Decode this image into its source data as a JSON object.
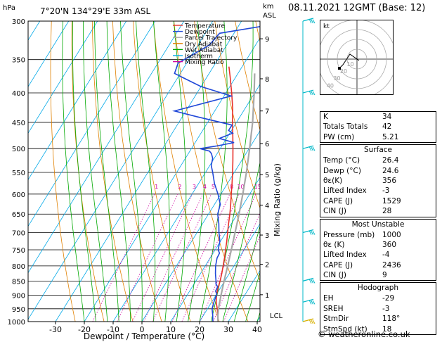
{
  "header": {
    "location": "7°20'N 134°29'E 33m ASL",
    "date": "08.11.2021 12GMT (Base: 12)",
    "pressure_unit": "hPa",
    "height_unit_top": "km",
    "height_unit_bottom": "ASL"
  },
  "chart_data": {
    "type": "line",
    "title": "7°20'N 134°29'E 33m ASL",
    "xlabel": "Dewpoint / Temperature (°C)",
    "ylabel_left": "hPa",
    "ylabel_right": "Mixing Ratio (g/kg)",
    "x_ticks": [
      -30,
      -20,
      -10,
      0,
      10,
      20,
      30,
      40
    ],
    "xlim": [
      -35,
      40
    ],
    "pressure_levels": [
      300,
      350,
      400,
      450,
      500,
      550,
      600,
      650,
      700,
      750,
      800,
      850,
      900,
      950,
      1000
    ],
    "ylim": [
      1000,
      300
    ],
    "y_scale": "log",
    "km_ticks": [
      {
        "km": "1",
        "p": 898
      },
      {
        "km": "2",
        "p": 795
      },
      {
        "km": "3",
        "p": 707
      },
      {
        "km": "4",
        "p": 627
      },
      {
        "km": "5",
        "p": 555
      },
      {
        "km": "6",
        "p": 490
      },
      {
        "km": "7",
        "p": 430
      },
      {
        "km": "8",
        "p": 378
      },
      {
        "km": "9",
        "p": 322
      }
    ],
    "lcl_label": "LCL",
    "lcl_pressure": 975,
    "mixing_ratio_labels": [
      "1",
      "2",
      "3",
      "4",
      "5",
      "8",
      "10",
      "15",
      "20",
      "25"
    ],
    "mixing_ratio_label_pressure": 590,
    "legend": [
      {
        "name": "Temperature",
        "color": "#e8302a"
      },
      {
        "name": "Dewpoint",
        "color": "#2048d8"
      },
      {
        "name": "Parcel Trajectory",
        "color": "#a8a8a8"
      },
      {
        "name": "Dry Adiabat",
        "color": "#e08000"
      },
      {
        "name": "Wet Adiabat",
        "color": "#00a800"
      },
      {
        "name": "Isotherm",
        "color": "#00a8e8"
      },
      {
        "name": "Mixing Ratio",
        "color": "#d000a0"
      }
    ],
    "series": [
      {
        "name": "Temperature",
        "color": "#e8302a",
        "points": [
          [
            1000,
            26.4
          ],
          [
            975,
            25.0
          ],
          [
            950,
            23.4
          ],
          [
            925,
            21.6
          ],
          [
            900,
            20.2
          ],
          [
            875,
            19.2
          ],
          [
            850,
            18.4
          ],
          [
            825,
            17.4
          ],
          [
            800,
            16.2
          ],
          [
            775,
            15.0
          ],
          [
            750,
            13.6
          ],
          [
            725,
            12.2
          ],
          [
            700,
            10.6
          ],
          [
            675,
            9.0
          ],
          [
            650,
            7.4
          ],
          [
            625,
            5.6
          ],
          [
            600,
            3.6
          ],
          [
            575,
            1.6
          ],
          [
            550,
            -0.6
          ],
          [
            525,
            -3.0
          ],
          [
            500,
            -5.6
          ],
          [
            475,
            -8.4
          ],
          [
            450,
            -11.4
          ],
          [
            425,
            -14.4
          ],
          [
            400,
            -18.0
          ],
          [
            375,
            -22.0
          ],
          [
            360,
            -24.6
          ]
        ]
      },
      {
        "name": "Dewpoint",
        "color": "#2048d8",
        "points": [
          [
            1000,
            24.6
          ],
          [
            975,
            23.2
          ],
          [
            950,
            21.6
          ],
          [
            925,
            20.8
          ],
          [
            910,
            20.4
          ],
          [
            895,
            20.0
          ],
          [
            885,
            19.0
          ],
          [
            870,
            18.8
          ],
          [
            860,
            17.6
          ],
          [
            850,
            17.0
          ],
          [
            825,
            15.2
          ],
          [
            800,
            13.6
          ],
          [
            775,
            12.4
          ],
          [
            760,
            12.2
          ],
          [
            750,
            11.0
          ],
          [
            725,
            9.8
          ],
          [
            700,
            7.6
          ],
          [
            675,
            5.6
          ],
          [
            650,
            3.2
          ],
          [
            625,
            2.0
          ],
          [
            600,
            -1.0
          ],
          [
            575,
            -4.5
          ],
          [
            550,
            -7.5
          ],
          [
            535,
            -9.5
          ],
          [
            520,
            -10.5
          ],
          [
            510,
            -12.0
          ],
          [
            505,
            -13.2
          ],
          [
            500,
            -17.0
          ],
          [
            495,
            -12.0
          ],
          [
            488,
            -6.5
          ],
          [
            480,
            -12.5
          ],
          [
            470,
            -9.0
          ],
          [
            465,
            -11.0
          ],
          [
            455,
            -11.0
          ],
          [
            440,
            -25.0
          ],
          [
            430,
            -34.0
          ],
          [
            405,
            -17.5
          ],
          [
            390,
            -30.0
          ],
          [
            370,
            -42.0
          ],
          [
            355,
            -43.0
          ],
          [
            330,
            -36.0
          ],
          [
            315,
            -35.0
          ],
          [
            300,
            -12.0
          ]
        ]
      },
      {
        "name": "Parcel Trajectory",
        "color": "#a8a8a8",
        "points": [
          [
            1000,
            26.4
          ],
          [
            975,
            25.0
          ],
          [
            950,
            23.8
          ],
          [
            925,
            22.8
          ],
          [
            900,
            21.8
          ],
          [
            850,
            19.8
          ],
          [
            800,
            17.8
          ],
          [
            750,
            15.6
          ],
          [
            700,
            13.2
          ],
          [
            650,
            10.6
          ],
          [
            600,
            7.6
          ],
          [
            550,
            4.2
          ],
          [
            500,
            0.2
          ],
          [
            450,
            -4.4
          ],
          [
            400,
            -10.2
          ],
          [
            370,
            -14.2
          ]
        ]
      }
    ],
    "wind_barbs_pressures": [
      300,
      400,
      500,
      700,
      850,
      925,
      1000
    ]
  },
  "hodograph": {
    "unit": "kt",
    "ring_labels": [
      "10",
      "20",
      "30",
      "40"
    ]
  },
  "indices": {
    "top": [
      {
        "k": "K",
        "v": "34"
      },
      {
        "k": "Totals Totals",
        "v": "42"
      },
      {
        "k": "PW (cm)",
        "v": "5.21"
      }
    ],
    "surface": {
      "title": "Surface",
      "rows": [
        {
          "k": "Temp (°C)",
          "v": "26.4"
        },
        {
          "k": "Dewp (°C)",
          "v": "24.6"
        },
        {
          "k": "θε(K)",
          "v": "356"
        },
        {
          "k": "Lifted Index",
          "v": "-3"
        },
        {
          "k": "CAPE (J)",
          "v": "1529"
        },
        {
          "k": "CIN (J)",
          "v": "28"
        }
      ]
    },
    "most_unstable": {
      "title": "Most Unstable",
      "rows": [
        {
          "k": "Pressure (mb)",
          "v": "1000"
        },
        {
          "k": "θε (K)",
          "v": "360"
        },
        {
          "k": "Lifted Index",
          "v": "-4"
        },
        {
          "k": "CAPE (J)",
          "v": "2436"
        },
        {
          "k": "CIN (J)",
          "v": "9"
        }
      ]
    },
    "hodograph": {
      "title": "Hodograph",
      "rows": [
        {
          "k": "EH",
          "v": "-29"
        },
        {
          "k": "SREH",
          "v": "-3"
        },
        {
          "k": "StmDir",
          "v": "118°"
        },
        {
          "k": "StmSpd (kt)",
          "v": "18"
        }
      ]
    }
  },
  "credit": "© weatheronline.co.uk"
}
